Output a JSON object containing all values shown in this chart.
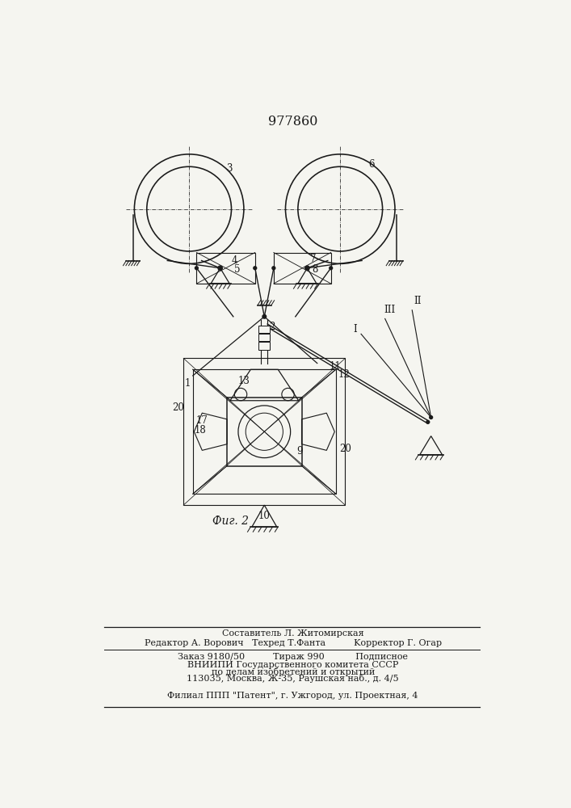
{
  "patent_number": "977860",
  "fig_label": "Фиг. 2",
  "background_color": "#f5f5f0",
  "line_color": "#1a1a1a",
  "footer_line1": "Составитель Л. Житомирская",
  "footer_line2": "Редактор А. Ворович   Техред Т.Фанта          Κорректор Г. Огар",
  "footer_line3": "Заказ 9180/50          Тираж 990           Подписное",
  "footer_line4": "ВНИИПИ Государственного комитета СССР",
  "footer_line5": "по делам изобретений и открытий",
  "footer_line6": "113035, Москва, Ж-35, Раушская наб., д. 4/5",
  "footer_line7": "Филиал ППП \"Патент\", г. Ужгород, ул. Проектная, 4"
}
